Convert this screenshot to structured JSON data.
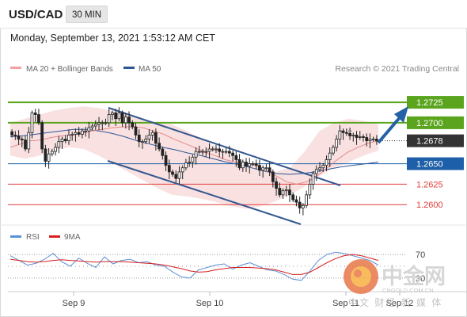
{
  "header": {
    "symbol": "USD/CAD",
    "timeframe": "30 MIN"
  },
  "timestamp": "Monday, September 13, 2021 1:53:12 AM CET",
  "legend": {
    "ma20_bb": "MA 20 + Bollinger Bands",
    "ma50": "MA 50",
    "rsi": "RSI",
    "rsi_ma": "9MA"
  },
  "credit": "Research © 2021 Trading Central",
  "watermark": {
    "brand": "中金网",
    "url": "CNGOLD.COM.CN",
    "slogan": "中文 财经 新 媒 体"
  },
  "colors": {
    "green_level": "#5aa51d",
    "blue_level": "#1d5fa8",
    "red_level": "#e23b3b",
    "current_price": "#333333",
    "bollinger": "#f4c9c9",
    "ma20": "#e48a8a",
    "ma50": "#2b5797",
    "channel": "#35588f",
    "arrow": "#2561a6",
    "rsi": "#5b8fd6",
    "rsi_ma": "#d61f1f"
  },
  "chart_data": [
    {
      "type": "candlestick",
      "title": "USD/CAD",
      "x_ticks": [
        "Sep 9",
        "Sep 10",
        "Sep 11",
        "Sep 12"
      ],
      "levels": [
        {
          "value": 1.2725,
          "label": "1.2725",
          "kind": "resistance",
          "color": "#5aa51d"
        },
        {
          "value": 1.27,
          "label": "1.2700",
          "kind": "resistance",
          "color": "#5aa51d"
        },
        {
          "value": 1.2678,
          "label": "1.2678",
          "kind": "current",
          "color": "#333333"
        },
        {
          "value": 1.265,
          "label": "1.2650",
          "kind": "pivot",
          "color": "#1d5fa8"
        },
        {
          "value": 1.2625,
          "label": "1.2625",
          "kind": "support",
          "color": "#e23b3b"
        },
        {
          "value": 1.26,
          "label": "1.2600",
          "kind": "support",
          "color": "#e23b3b"
        }
      ],
      "ylim": [
        1.2577,
        1.2757
      ],
      "close_series": [
        1.2685,
        1.2684,
        1.268,
        1.2679,
        1.2668,
        1.2688,
        1.2712,
        1.271,
        1.27,
        1.2668,
        1.2653,
        1.2662,
        1.2665,
        1.267,
        1.2677,
        1.268,
        1.2678,
        1.2685,
        1.2686,
        1.2688,
        1.2686,
        1.269,
        1.269,
        1.2694,
        1.2696,
        1.2698,
        1.27,
        1.27,
        1.27,
        1.271,
        1.2712,
        1.2705,
        1.2712,
        1.27,
        1.2707,
        1.27,
        1.2695,
        1.2685,
        1.2677,
        1.2677,
        1.268,
        1.2685,
        1.2688,
        1.2675,
        1.2668,
        1.266,
        1.2648,
        1.264,
        1.2637,
        1.2632,
        1.264,
        1.2645,
        1.2651,
        1.2652,
        1.2658,
        1.2665,
        1.2665,
        1.2665,
        1.2665,
        1.2668,
        1.2668,
        1.2668,
        1.2665,
        1.2665,
        1.2665,
        1.2663,
        1.266,
        1.2655,
        1.2645,
        1.2652,
        1.2647,
        1.265,
        1.265,
        1.2648,
        1.2642,
        1.2645,
        1.2645,
        1.264,
        1.2628,
        1.262,
        1.2612,
        1.2617,
        1.2618,
        1.2612,
        1.2606,
        1.2603,
        1.2596,
        1.2599,
        1.2612,
        1.2625,
        1.2638,
        1.2643,
        1.2645,
        1.2648,
        1.2655,
        1.2663,
        1.267,
        1.268,
        1.269,
        1.2688,
        1.2687,
        1.2684,
        1.2685,
        1.2682,
        1.2683,
        1.2682,
        1.2678,
        1.268,
        1.268,
        1.2678
      ],
      "ma20_series": [
        1.267,
        1.2674,
        1.2678,
        1.2679,
        1.2682,
        1.2684,
        1.2685,
        1.2687,
        1.269,
        1.2692,
        1.2694,
        1.2695,
        1.2695,
        1.2694,
        1.269,
        1.2686,
        1.268,
        1.2675,
        1.267,
        1.2664,
        1.266,
        1.2655,
        1.2652,
        1.265,
        1.2648,
        1.2642,
        1.2635,
        1.2628,
        1.2625,
        1.2628,
        1.2635,
        1.2645,
        1.2655,
        1.2664,
        1.267,
        1.2675,
        1.2678
      ],
      "ma50_series": [
        1.2683,
        1.2684,
        1.2686,
        1.2688,
        1.269,
        1.2692,
        1.2692,
        1.269,
        1.2687,
        1.2683,
        1.2678,
        1.2674,
        1.267,
        1.2667,
        1.2663,
        1.266,
        1.2656,
        1.2652,
        1.2649,
        1.2645,
        1.2641,
        1.2638,
        1.2637,
        1.2638,
        1.264,
        1.2643,
        1.2646,
        1.2648,
        1.265,
        1.2652
      ],
      "bb_upper": [
        1.27,
        1.2705,
        1.271,
        1.2715,
        1.2718,
        1.272,
        1.2718,
        1.2714,
        1.271,
        1.2705,
        1.27,
        1.2698,
        1.269,
        1.268,
        1.267,
        1.266,
        1.2652,
        1.2645,
        1.264,
        1.2645,
        1.2665,
        1.269,
        1.27,
        1.2705,
        1.2702,
        1.2698
      ],
      "bb_lower": [
        1.266,
        1.2656,
        1.266,
        1.2667,
        1.267,
        1.2668,
        1.266,
        1.265,
        1.264,
        1.263,
        1.262,
        1.2612,
        1.261,
        1.2607,
        1.2603,
        1.2598,
        1.2595,
        1.2598,
        1.2604,
        1.2612,
        1.2622,
        1.2635,
        1.2645,
        1.2652,
        1.266,
        1.2666
      ]
    },
    {
      "type": "line",
      "title": "RSI",
      "ylim": [
        15,
        85
      ],
      "reference_levels": [
        70,
        50,
        30
      ],
      "tick_labels": [
        "70",
        "30"
      ],
      "series": [
        {
          "name": "RSI",
          "values": [
            68,
            60,
            52,
            55,
            62,
            72,
            58,
            50,
            64,
            55,
            48,
            66,
            54,
            60,
            62,
            56,
            58,
            52,
            50,
            40,
            32,
            30,
            44,
            48,
            52,
            54,
            45,
            52,
            56,
            50,
            44,
            42,
            36,
            28,
            26,
            42,
            60,
            70,
            74,
            72,
            68,
            64,
            60,
            52
          ]
        },
        {
          "name": "9MA",
          "values": [
            62,
            60,
            58,
            57,
            58,
            60,
            61,
            60,
            59,
            58,
            57,
            58,
            58,
            58,
            57,
            56,
            55,
            54,
            52,
            49,
            46,
            42,
            40,
            41,
            44,
            46,
            48,
            48,
            48,
            47,
            46,
            44,
            40,
            36,
            36,
            40,
            48,
            56,
            63,
            68,
            70,
            68,
            64,
            60
          ]
        }
      ]
    }
  ]
}
